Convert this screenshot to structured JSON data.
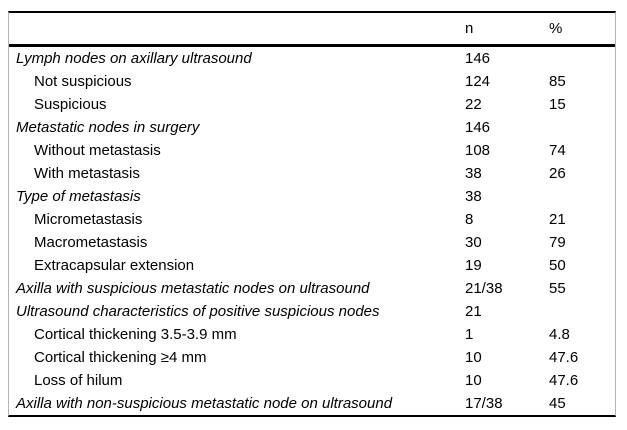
{
  "table": {
    "columns": {
      "label": "",
      "n": "n",
      "pct": "%"
    },
    "rows": [
      {
        "label": "Lymph nodes on axillary ultrasound",
        "n": "146",
        "pct": "",
        "style": "category"
      },
      {
        "label": "Not suspicious",
        "n": "124",
        "pct": "85",
        "style": "item"
      },
      {
        "label": "Suspicious",
        "n": "22",
        "pct": "15",
        "style": "item"
      },
      {
        "label": "Metastatic nodes in surgery",
        "n": "146",
        "pct": "",
        "style": "category"
      },
      {
        "label": "Without metastasis",
        "n": "108",
        "pct": "74",
        "style": "item"
      },
      {
        "label": "With metastasis",
        "n": "38",
        "pct": "26",
        "style": "item"
      },
      {
        "label": "Type of metastasis",
        "n": "38",
        "pct": "",
        "style": "category"
      },
      {
        "label": "Micrometastasis",
        "n": "8",
        "pct": "21",
        "style": "item"
      },
      {
        "label": "Macrometastasis",
        "n": "30",
        "pct": "79",
        "style": "item"
      },
      {
        "label": "Extracapsular extension",
        "n": "19",
        "pct": "50",
        "style": "item"
      },
      {
        "label": "Axilla with suspicious metastatic nodes on ultrasound",
        "n": "21/38",
        "pct": "55",
        "style": "category"
      },
      {
        "label": "Ultrasound characteristics of positive suspicious nodes",
        "n": "21",
        "pct": "",
        "style": "category"
      },
      {
        "label": "Cortical thickening 3.5-3.9 mm",
        "n": "1",
        "pct": "4.8",
        "style": "item"
      },
      {
        "label": "Cortical thickening ≥4 mm",
        "n": "10",
        "pct": "47.6",
        "style": "item"
      },
      {
        "label": "Loss of hilum",
        "n": "10",
        "pct": "47.6",
        "style": "item"
      },
      {
        "label": "Axilla with non-suspicious metastatic node on ultrasound",
        "n": "17/38",
        "pct": "45",
        "style": "category"
      }
    ],
    "colors": {
      "text": "#000000",
      "rule": "#000000",
      "outline": "#b4b4b4",
      "background": "#ffffff"
    }
  }
}
